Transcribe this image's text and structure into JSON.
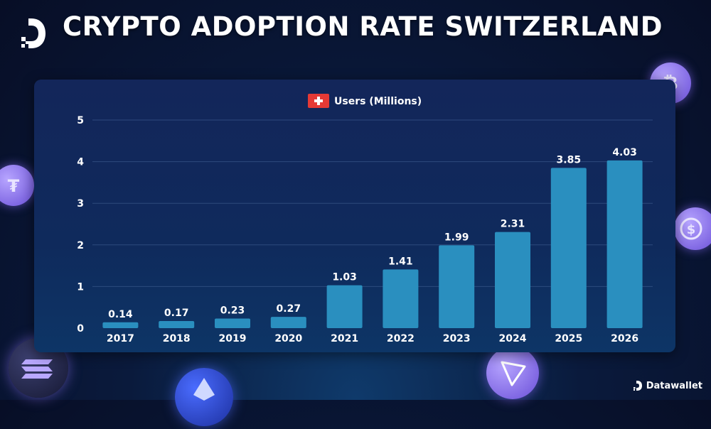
{
  "header": {
    "title": "CRYPTO ADOPTION RATE SWITZERLAND"
  },
  "brand": {
    "name": "Datawallet"
  },
  "chart_data": {
    "type": "bar",
    "legend": {
      "label": "Users (Millions)",
      "icon": "swiss-flag-icon",
      "placement": "top-center"
    },
    "categories": [
      "2017",
      "2018",
      "2019",
      "2020",
      "2021",
      "2022",
      "2023",
      "2024",
      "2025",
      "2026"
    ],
    "series": [
      {
        "name": "Users (Millions)",
        "values": [
          0.14,
          0.17,
          0.23,
          0.27,
          1.03,
          1.41,
          1.99,
          2.31,
          3.85,
          4.03
        ]
      }
    ],
    "data_labels": [
      "0.14",
      "0.17",
      "0.23",
      "0.27",
      "1.03",
      "1.41",
      "1.99",
      "2.31",
      "3.85",
      "4.03"
    ],
    "ylim": [
      0,
      5
    ],
    "yticks": [
      0,
      1,
      2,
      3,
      4,
      5
    ],
    "grid": true,
    "colors": {
      "bar": "#2a8fbf",
      "grid": "#3a5a8c",
      "text": "#ffffff",
      "flag": "#e53935"
    }
  }
}
